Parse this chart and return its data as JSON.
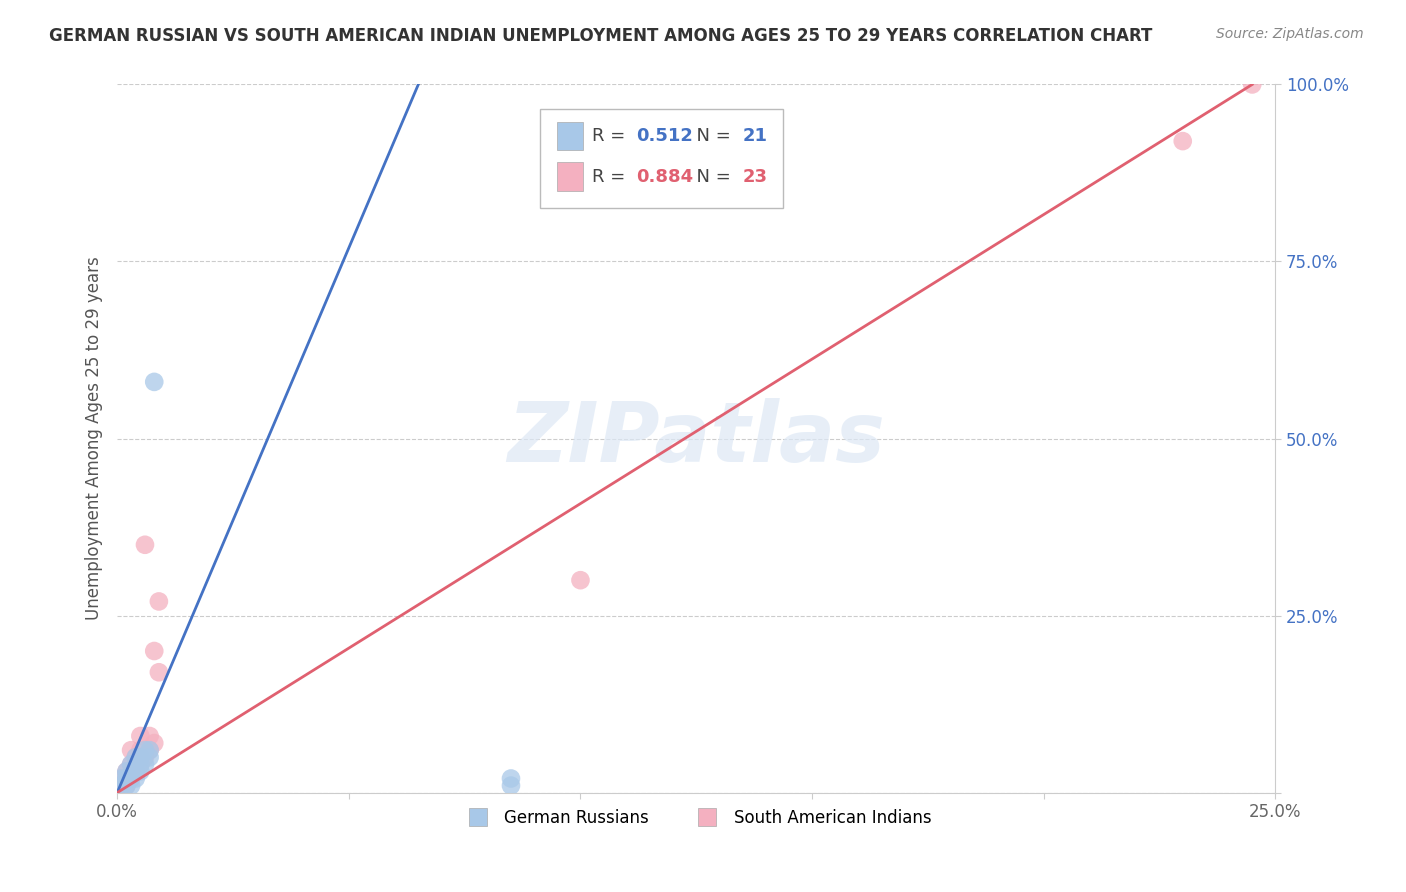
{
  "title": "GERMAN RUSSIAN VS SOUTH AMERICAN INDIAN UNEMPLOYMENT AMONG AGES 25 TO 29 YEARS CORRELATION CHART",
  "source": "Source: ZipAtlas.com",
  "ylabel": "Unemployment Among Ages 25 to 29 years",
  "xlim": [
    0.0,
    0.25
  ],
  "ylim": [
    0.0,
    1.0
  ],
  "xticks": [
    0.0,
    0.05,
    0.1,
    0.15,
    0.2,
    0.25
  ],
  "xtick_labels": [
    "0.0%",
    "",
    "",
    "",
    "",
    "25.0%"
  ],
  "yticks": [
    0.0,
    0.25,
    0.5,
    0.75,
    1.0
  ],
  "ytick_labels": [
    "",
    "25.0%",
    "50.0%",
    "75.0%",
    "100.0%"
  ],
  "legend1_label": "German Russians",
  "legend2_label": "South American Indians",
  "R1": "0.512",
  "N1": "21",
  "R2": "0.884",
  "N2": "23",
  "blue_color": "#a8c8e8",
  "pink_color": "#f4b0c0",
  "blue_line_color": "#4472c4",
  "pink_line_color": "#e06070",
  "watermark_text": "ZIPatlas",
  "background_color": "#ffffff",
  "grid_color": "#cccccc",
  "german_russian_x": [
    0.001,
    0.001,
    0.002,
    0.002,
    0.002,
    0.003,
    0.003,
    0.003,
    0.004,
    0.004,
    0.004,
    0.005,
    0.005,
    0.005,
    0.006,
    0.006,
    0.007,
    0.007,
    0.008,
    0.085,
    0.085
  ],
  "german_russian_y": [
    0.01,
    0.02,
    0.01,
    0.02,
    0.03,
    0.01,
    0.02,
    0.04,
    0.02,
    0.03,
    0.05,
    0.03,
    0.04,
    0.05,
    0.04,
    0.06,
    0.05,
    0.06,
    0.58,
    0.01,
    0.02
  ],
  "south_american_x": [
    0.001,
    0.001,
    0.002,
    0.002,
    0.003,
    0.003,
    0.003,
    0.004,
    0.004,
    0.005,
    0.005,
    0.005,
    0.006,
    0.006,
    0.007,
    0.007,
    0.008,
    0.008,
    0.009,
    0.009,
    0.1,
    0.23,
    0.245
  ],
  "south_american_y": [
    0.01,
    0.02,
    0.01,
    0.03,
    0.02,
    0.04,
    0.06,
    0.03,
    0.05,
    0.04,
    0.06,
    0.08,
    0.05,
    0.35,
    0.06,
    0.08,
    0.07,
    0.2,
    0.27,
    0.17,
    0.3,
    0.92,
    1.0
  ],
  "blue_line_x": [
    0.0,
    0.065
  ],
  "blue_line_y": [
    0.0,
    1.0
  ],
  "pink_line_x": [
    0.0,
    0.245
  ],
  "pink_line_y": [
    0.0,
    1.0
  ]
}
